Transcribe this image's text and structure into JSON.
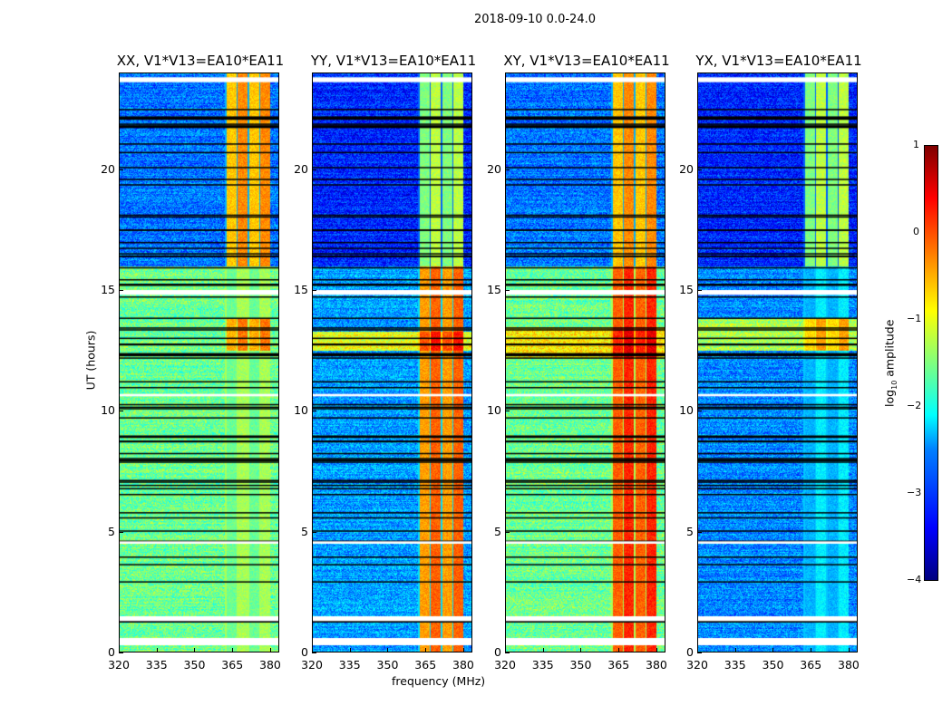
{
  "chart_data": {
    "type": "heatmap",
    "title": "2018-09-10 0.0-24.0",
    "xlabel": "frequency (MHz)",
    "ylabel": "UT (hours)",
    "xlim": [
      320,
      383.6
    ],
    "ylim": [
      0,
      24
    ],
    "xticks": [
      "320",
      "335",
      "350",
      "365",
      "380"
    ],
    "yticks": [
      "0",
      "5",
      "10",
      "15",
      "20"
    ],
    "colorbar": {
      "label_main": "log",
      "label_sub": "10",
      "label_rest": " amplitude",
      "range": [
        -4,
        1
      ],
      "ticks": [
        "1",
        "0",
        "−1",
        "−2",
        "−3",
        "−4"
      ]
    },
    "flagged_hours": [
      [
        0.3,
        0.6
      ],
      [
        1.3,
        1.5
      ],
      [
        4.5,
        4.6
      ],
      [
        10.6,
        10.7
      ],
      [
        14.8,
        15.0
      ],
      [
        23.6,
        23.8
      ]
    ],
    "rfi_band_mhz": [
      362,
      380
    ],
    "panels": [
      {
        "title": "XX, V1*V13=EA10*EA11",
        "segments": [
          [
            0,
            16,
            -1.6,
            -1.5
          ],
          [
            12.5,
            13.8,
            -1.6,
            -0.4
          ],
          [
            16,
            24,
            -2.8,
            -0.5
          ]
        ]
      },
      {
        "title": "YY, V1*V13=EA10*EA11",
        "segments": [
          [
            0,
            16,
            -2.6,
            -0.3
          ],
          [
            12.5,
            13.3,
            -1.0,
            0.1
          ],
          [
            16,
            24,
            -3.2,
            -1.4
          ]
        ]
      },
      {
        "title": "XY, V1*V13=EA10*EA11",
        "segments": [
          [
            0,
            16,
            -1.6,
            0.0
          ],
          [
            12.2,
            13.5,
            -0.8,
            0.3
          ],
          [
            16,
            24,
            -2.8,
            -0.5
          ]
        ]
      },
      {
        "title": "YX, V1*V13=EA10*EA11",
        "segments": [
          [
            0,
            16,
            -2.7,
            -2.4
          ],
          [
            12.5,
            13.8,
            -1.3,
            -0.6
          ],
          [
            16,
            24,
            -3.2,
            -1.4
          ]
        ]
      }
    ]
  }
}
